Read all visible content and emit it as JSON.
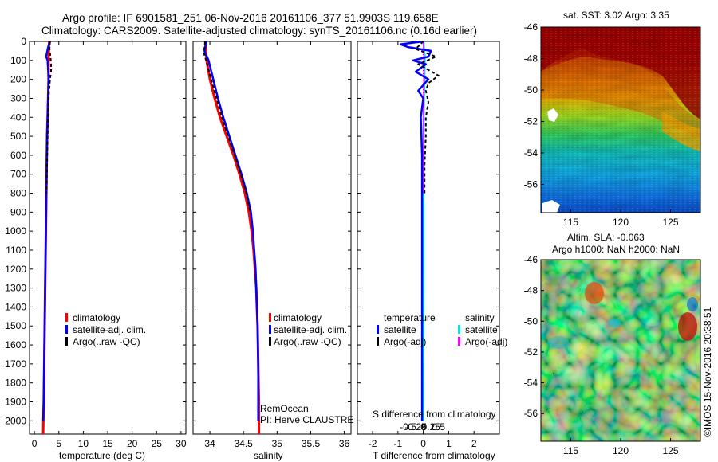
{
  "header": {
    "line1": "Argo profile: IF 6901581_251 06-Nov-2016 20161106_377 51.9903S 119.658E",
    "line2": "Climatology: CARS2009. Satellite-adjusted climatology: synTS_20161106.nc (0.16d earlier)"
  },
  "colors": {
    "climatology": "#ff0000",
    "satellite": "#0000ff",
    "argo": "#000000",
    "satellite_salinity": "#00e5e5",
    "argo_salinity": "#ff00ff"
  },
  "chart_data": [
    {
      "id": "temperature",
      "type": "line",
      "xlabel": "temperature (deg C)",
      "xlim": [
        -1,
        31
      ],
      "ylim": [
        0,
        2070
      ],
      "xticks": [
        0,
        5,
        10,
        15,
        20,
        25,
        30
      ],
      "xtick_labels": [
        "0",
        "5",
        "10",
        "15",
        "20",
        "25",
        "30"
      ],
      "yticks": [
        0,
        100,
        200,
        300,
        400,
        500,
        600,
        700,
        800,
        900,
        1000,
        1100,
        1200,
        1300,
        1400,
        1500,
        1600,
        1700,
        1800,
        1900,
        2000
      ],
      "ytick_labels": [
        "0",
        "100",
        "200",
        "300",
        "400",
        "500",
        "600",
        "700",
        "800",
        "900",
        "1000",
        "1100",
        "1200",
        "1300",
        "1400",
        "1500",
        "1600",
        "1700",
        "1800",
        "1900",
        "2000"
      ],
      "legend": [
        "climatology",
        "satellite-adj. clim.",
        "Argo(..raw -QC)"
      ],
      "series": [
        {
          "name": "climatology",
          "points": [
            [
              3.0,
              0
            ],
            [
              2.9,
              100
            ],
            [
              2.9,
              200
            ],
            [
              2.8,
              300
            ],
            [
              2.7,
              400
            ],
            [
              2.6,
              500
            ],
            [
              2.5,
              700
            ],
            [
              2.4,
              900
            ],
            [
              2.3,
              1100
            ],
            [
              2.2,
              1300
            ],
            [
              2.1,
              1500
            ],
            [
              2.0,
              1700
            ],
            [
              1.9,
              1900
            ],
            [
              1.8,
              2070
            ]
          ]
        },
        {
          "name": "satellite-adj. clim.",
          "points": [
            [
              3.2,
              0
            ],
            [
              2.8,
              30
            ],
            [
              2.4,
              80
            ],
            [
              2.7,
              100
            ],
            [
              2.9,
              200
            ],
            [
              2.8,
              300
            ],
            [
              2.7,
              400
            ],
            [
              2.6,
              500
            ],
            [
              2.5,
              700
            ],
            [
              2.4,
              900
            ],
            [
              2.3,
              1100
            ],
            [
              2.2,
              1300
            ],
            [
              2.1,
              1500
            ],
            [
              2.0,
              1700
            ],
            [
              1.9,
              1900
            ],
            [
              1.8,
              2000
            ]
          ]
        },
        {
          "name": "Argo(..raw -QC)",
          "points": [
            [
              3.2,
              0
            ],
            [
              3.1,
              40
            ],
            [
              3.3,
              80
            ],
            [
              3.4,
              120
            ],
            [
              3.4,
              160
            ],
            [
              3.2,
              200
            ],
            [
              3.0,
              260
            ],
            [
              2.9,
              320
            ],
            [
              2.8,
              400
            ],
            [
              2.7,
              500
            ],
            [
              2.6,
              650
            ],
            [
              2.5,
              800
            ]
          ]
        }
      ]
    },
    {
      "id": "salinity",
      "type": "line",
      "xlabel": "salinity",
      "xlim": [
        33.75,
        36.1
      ],
      "ylim": [
        0,
        2070
      ],
      "xticks": [
        34,
        34.5,
        35,
        35.5,
        36
      ],
      "xtick_labels": [
        "34",
        "34.5",
        "35",
        "35.5",
        "36"
      ],
      "legend": [
        "climatology",
        "satellite-adj. clim.",
        "Argo(..raw -QC)"
      ],
      "annotation": [
        "RemOcean",
        "PI: Herve CLAUSTRE"
      ],
      "series": [
        {
          "name": "climatology",
          "points": [
            [
              33.93,
              0
            ],
            [
              33.95,
              100
            ],
            [
              34.0,
              200
            ],
            [
              34.07,
              300
            ],
            [
              34.15,
              400
            ],
            [
              34.25,
              500
            ],
            [
              34.35,
              600
            ],
            [
              34.44,
              700
            ],
            [
              34.52,
              800
            ],
            [
              34.58,
              900
            ],
            [
              34.62,
              1000
            ],
            [
              34.65,
              1100
            ],
            [
              34.67,
              1200
            ],
            [
              34.69,
              1300
            ],
            [
              34.7,
              1400
            ],
            [
              34.71,
              1500
            ],
            [
              34.72,
              1700
            ],
            [
              34.73,
              1900
            ],
            [
              34.73,
              2070
            ]
          ]
        },
        {
          "name": "satellite-adj. clim.",
          "points": [
            [
              33.95,
              0
            ],
            [
              33.92,
              50
            ],
            [
              33.98,
              100
            ],
            [
              34.05,
              200
            ],
            [
              34.12,
              300
            ],
            [
              34.2,
              400
            ],
            [
              34.29,
              500
            ],
            [
              34.38,
              600
            ],
            [
              34.47,
              700
            ],
            [
              34.55,
              800
            ],
            [
              34.61,
              900
            ],
            [
              34.64,
              1000
            ],
            [
              34.66,
              1100
            ],
            [
              34.68,
              1200
            ],
            [
              34.69,
              1300
            ],
            [
              34.7,
              1400
            ],
            [
              34.71,
              1500
            ],
            [
              34.72,
              1700
            ],
            [
              34.72,
              1900
            ],
            [
              34.72,
              2000
            ]
          ]
        },
        {
          "name": "Argo(..raw -QC)",
          "points": [
            [
              33.93,
              0
            ],
            [
              33.91,
              60
            ],
            [
              33.96,
              120
            ],
            [
              34.02,
              200
            ],
            [
              34.1,
              300
            ],
            [
              34.18,
              400
            ],
            [
              34.27,
              500
            ],
            [
              34.37,
              600
            ],
            [
              34.46,
              700
            ],
            [
              34.54,
              800
            ],
            [
              34.6,
              900
            ]
          ]
        }
      ]
    },
    {
      "id": "difference",
      "type": "line",
      "xlabel": "T difference from climatology",
      "xlabel2": "S difference from climatology",
      "xlim": [
        -2.6,
        3.0
      ],
      "ylim": [
        0,
        2070
      ],
      "xticks": [
        -2,
        -1,
        0,
        1,
        2
      ],
      "xtick_labels": [
        "-2",
        "-1",
        "0",
        "1",
        "2"
      ],
      "s_xticks": [
        -0.5,
        -0.25,
        0,
        0.25,
        0.5
      ],
      "s_xtick_labels": [
        "-0.5",
        "-0.25",
        "0",
        "0.25",
        "0.5"
      ],
      "legend_headers": [
        "temperature",
        "salinity"
      ],
      "legend_t": [
        "satellite",
        "Argo(-adj)"
      ],
      "legend_s": [
        "satellite",
        "Argo(-adj)"
      ],
      "series": [
        {
          "name": "T satellite",
          "points": [
            [
              0,
              0
            ],
            [
              -0.9,
              15
            ],
            [
              -0.6,
              30
            ],
            [
              0.3,
              50
            ],
            [
              0.2,
              80
            ],
            [
              -0.4,
              100
            ],
            [
              0.1,
              120
            ],
            [
              -0.3,
              160
            ],
            [
              0.2,
              200
            ],
            [
              -0.2,
              260
            ],
            [
              0,
              300
            ],
            [
              -0.1,
              400
            ],
            [
              -0.05,
              600
            ],
            [
              -0.05,
              900
            ],
            [
              -0.05,
              1200
            ],
            [
              -0.05,
              1600
            ],
            [
              -0.05,
              2000
            ]
          ]
        },
        {
          "name": "T Argo(-adj)",
          "points": [
            [
              0,
              0
            ],
            [
              -0.3,
              40
            ],
            [
              0.5,
              80
            ],
            [
              -0.2,
              120
            ],
            [
              0.6,
              180
            ],
            [
              0.2,
              220
            ],
            [
              0.1,
              260
            ],
            [
              0.2,
              320
            ],
            [
              0.1,
              400
            ],
            [
              0.1,
              500
            ],
            [
              0.05,
              650
            ],
            [
              0.05,
              800
            ]
          ]
        },
        {
          "name": "S satellite",
          "points": [
            [
              0.01,
              0
            ],
            [
              0.02,
              40
            ],
            [
              0.05,
              80
            ],
            [
              0.04,
              150
            ],
            [
              0.03,
              250
            ],
            [
              0.02,
              300
            ],
            [
              0.012,
              400
            ],
            [
              0.01,
              600
            ],
            [
              0.008,
              900
            ],
            [
              0.006,
              1200
            ],
            [
              0.004,
              1500
            ],
            [
              0.002,
              1800
            ],
            [
              0,
              2000
            ]
          ]
        },
        {
          "name": "S Argo(-adj)",
          "points": [
            [
              0.01,
              0
            ],
            [
              0.02,
              100
            ],
            [
              0.02,
              200
            ],
            [
              0.015,
              300
            ],
            [
              0.01,
              500
            ],
            [
              0.008,
              700
            ],
            [
              0.005,
              800
            ]
          ]
        }
      ]
    },
    {
      "id": "sst-map",
      "type": "heatmap",
      "title": "sat. SST: 3.02  Argo: 3.35",
      "xticks": [
        115,
        120,
        125
      ],
      "xtick_labels": [
        "115",
        "120",
        "125"
      ],
      "yticks": [
        -46,
        -48,
        -50,
        -52,
        -54,
        -56
      ],
      "ytick_labels": [
        "-46",
        "-48",
        "-50",
        "-52",
        "-54",
        "-56"
      ],
      "xlim": [
        112.0,
        128.0
      ],
      "ylim": [
        -57.8,
        -46.0
      ]
    },
    {
      "id": "sla-map",
      "type": "heatmap",
      "title_line1": "Altim. SLA: -0.063",
      "title_line2": "Argo h1000: NaN h2000: NaN",
      "xticks": [
        115,
        120,
        125
      ],
      "xtick_labels": [
        "115",
        "120",
        "125"
      ],
      "yticks": [
        -46,
        -48,
        -50,
        -52,
        -54,
        -56
      ],
      "ytick_labels": [
        "-46",
        "-48",
        "-50",
        "-52",
        "-54",
        "-56"
      ],
      "xlim": [
        112.0,
        128.0
      ],
      "ylim": [
        -57.8,
        -46.0
      ]
    }
  ],
  "footer": {
    "imos_stamp": "©IMOS 15-Nov-2016 20:38:51"
  }
}
